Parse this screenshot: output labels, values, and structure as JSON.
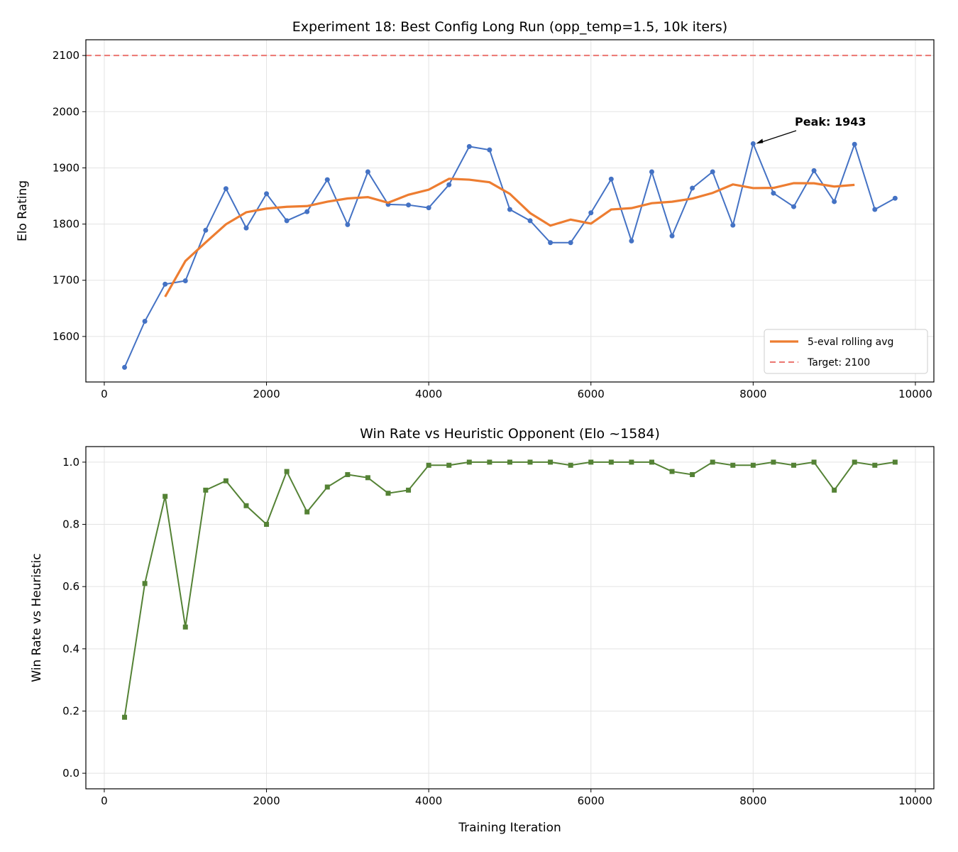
{
  "chart_data": [
    {
      "type": "line",
      "title": "Experiment 18: Best Config Long Run (opp_temp=1.5, 10k iters)",
      "xlabel": "",
      "ylabel": "Elo Rating",
      "xlim": [
        -227,
        10228
      ],
      "ylim": [
        1519,
        2128
      ],
      "xticks": [
        "0",
        "2000",
        "4000",
        "6000",
        "8000",
        "10000"
      ],
      "yticks": [
        "1600",
        "1700",
        "1800",
        "1900",
        "2000",
        "2100"
      ],
      "grid": true,
      "legend_position": "lower-right",
      "x": [
        250,
        500,
        750,
        1000,
        1250,
        1500,
        1750,
        2000,
        2250,
        2500,
        2750,
        3000,
        3250,
        3500,
        3750,
        4000,
        4250,
        4500,
        4750,
        5000,
        5250,
        5500,
        5750,
        6000,
        6250,
        6500,
        6750,
        7000,
        7250,
        7500,
        7750,
        8000,
        8250,
        8500,
        8750,
        9000,
        9250,
        9500,
        9750
      ],
      "series": [
        {
          "values": [
            1545,
            1627,
            1693,
            1699,
            1789,
            1863,
            1793,
            1854,
            1806,
            1822,
            1879,
            1799,
            1893,
            1835,
            1834,
            1829,
            1870,
            1938,
            1932,
            1826,
            1806,
            1767,
            1767,
            1820,
            1880,
            1770,
            1893,
            1779,
            1864,
            1893,
            1798,
            1943,
            1855,
            1831,
            1895,
            1840,
            1942,
            1826,
            1846
          ],
          "color": "#4472c4",
          "marker": "circle"
        },
        {
          "name": "5-eval rolling avg",
          "window": 5,
          "color": "#ed7d31"
        }
      ],
      "reference_line": {
        "name": "Target: 2100",
        "y": 2100,
        "color": "#eb7670",
        "style": "dashed"
      },
      "annotation": {
        "text": "Peak: 1943",
        "x": 8000,
        "y": 1943
      }
    },
    {
      "type": "line",
      "title": "Win Rate vs Heuristic Opponent (Elo ~1584)",
      "xlabel": "Training Iteration",
      "ylabel": "Win Rate vs Heuristic",
      "xlim": [
        -227,
        10228
      ],
      "ylim": [
        -0.05,
        1.05
      ],
      "xticks": [
        "0",
        "2000",
        "4000",
        "6000",
        "8000",
        "10000"
      ],
      "yticks": [
        "0.0",
        "0.2",
        "0.4",
        "0.6",
        "0.8",
        "1.0"
      ],
      "grid": true,
      "x": [
        250,
        500,
        750,
        1000,
        1250,
        1500,
        1750,
        2000,
        2250,
        2500,
        2750,
        3000,
        3250,
        3500,
        3750,
        4000,
        4250,
        4500,
        4750,
        5000,
        5250,
        5500,
        5750,
        6000,
        6250,
        6500,
        6750,
        7000,
        7250,
        7500,
        7750,
        8000,
        8250,
        8500,
        8750,
        9000,
        9250,
        9500,
        9750
      ],
      "series": [
        {
          "values": [
            0.18,
            0.61,
            0.89,
            0.47,
            0.91,
            0.94,
            0.86,
            0.8,
            0.97,
            0.84,
            0.92,
            0.96,
            0.95,
            0.9,
            0.91,
            0.99,
            0.99,
            1.0,
            1.0,
            1.0,
            1.0,
            1.0,
            0.99,
            1.0,
            1.0,
            1.0,
            1.0,
            0.97,
            0.96,
            1.0,
            0.99,
            0.99,
            1.0,
            0.99,
            1.0,
            0.91,
            1.0,
            0.99,
            1.0
          ],
          "color": "#548235",
          "marker": "square"
        }
      ]
    }
  ]
}
